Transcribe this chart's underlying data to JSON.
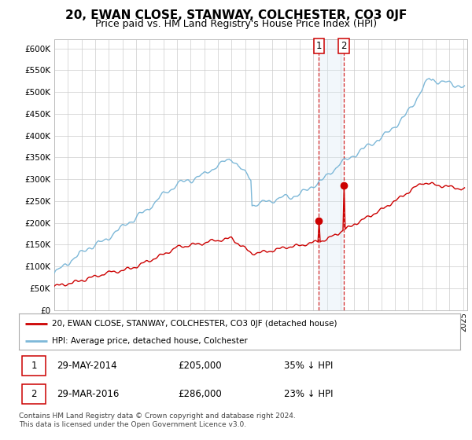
{
  "title": "20, EWAN CLOSE, STANWAY, COLCHESTER, CO3 0JF",
  "subtitle": "Price paid vs. HM Land Registry's House Price Index (HPI)",
  "title_fontsize": 11,
  "subtitle_fontsize": 9,
  "ylim": [
    0,
    620000
  ],
  "yticks": [
    0,
    50000,
    100000,
    150000,
    200000,
    250000,
    300000,
    350000,
    400000,
    450000,
    500000,
    550000,
    600000
  ],
  "ytick_labels": [
    "£0",
    "£50K",
    "£100K",
    "£150K",
    "£200K",
    "£250K",
    "£300K",
    "£350K",
    "£400K",
    "£450K",
    "£500K",
    "£550K",
    "£600K"
  ],
  "hpi_color": "#7db8d8",
  "price_color": "#cc0000",
  "marker_color": "#cc0000",
  "vline_color": "#cc0000",
  "vspan_color": "#daeaf4",
  "purchase1_date": 2014.42,
  "purchase1_price": 205000,
  "purchase2_date": 2016.25,
  "purchase2_price": 286000,
  "footer_text": "Contains HM Land Registry data © Crown copyright and database right 2024.\nThis data is licensed under the Open Government Licence v3.0.",
  "legend1_label": "20, EWAN CLOSE, STANWAY, COLCHESTER, CO3 0JF (detached house)",
  "legend2_label": "HPI: Average price, detached house, Colchester"
}
